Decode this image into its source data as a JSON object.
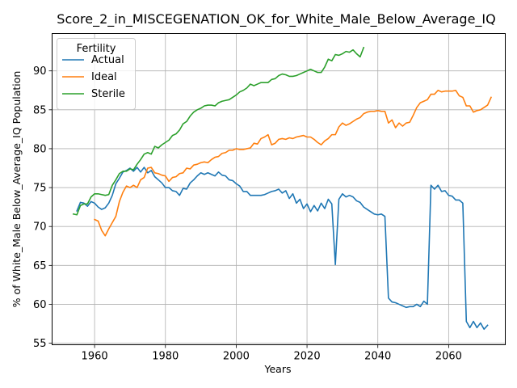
{
  "chart_data": {
    "type": "line",
    "title": "Score_2_in_MISCEGENATION_OK_for_White_Male_Below_Average_IQ",
    "xlabel": "Years",
    "ylabel": "% of White_Male Below_Average_IQ Population",
    "xlim": [
      1948,
      2076
    ],
    "ylim": [
      54.8,
      94.8
    ],
    "xticks": [
      1960,
      1980,
      2000,
      2020,
      2040,
      2060
    ],
    "yticks": [
      55,
      60,
      65,
      70,
      75,
      80,
      85,
      90
    ],
    "grid": true,
    "legend": {
      "title": "Fertility",
      "placement": "top-left"
    },
    "series": [
      {
        "name": "Actual",
        "color": "#1f77b4",
        "points": [
          [
            1955,
            72.0
          ],
          [
            1956,
            73.1
          ],
          [
            1957,
            73.0
          ],
          [
            1958,
            72.6
          ],
          [
            1959,
            73.2
          ],
          [
            1960,
            73.0
          ],
          [
            1961,
            72.5
          ],
          [
            1962,
            72.2
          ],
          [
            1963,
            72.4
          ],
          [
            1964,
            73.0
          ],
          [
            1965,
            74.0
          ],
          [
            1966,
            75.5
          ],
          [
            1967,
            76.2
          ],
          [
            1968,
            77.0
          ],
          [
            1969,
            77.2
          ],
          [
            1970,
            77.5
          ],
          [
            1971,
            77.1
          ],
          [
            1972,
            77.6
          ],
          [
            1973,
            77.0
          ],
          [
            1974,
            77.6
          ],
          [
            1975,
            76.9
          ],
          [
            1976,
            77.2
          ],
          [
            1977,
            76.4
          ],
          [
            1978,
            76.0
          ],
          [
            1979,
            75.6
          ],
          [
            1980,
            75.0
          ],
          [
            1981,
            75.0
          ],
          [
            1982,
            74.6
          ],
          [
            1983,
            74.5
          ],
          [
            1984,
            74.0
          ],
          [
            1985,
            74.9
          ],
          [
            1986,
            74.8
          ],
          [
            1987,
            75.6
          ],
          [
            1988,
            76.0
          ],
          [
            1989,
            76.5
          ],
          [
            1990,
            76.9
          ],
          [
            1991,
            76.7
          ],
          [
            1992,
            76.9
          ],
          [
            1993,
            76.7
          ],
          [
            1994,
            76.5
          ],
          [
            1995,
            77.0
          ],
          [
            1996,
            76.6
          ],
          [
            1997,
            76.5
          ],
          [
            1998,
            76.0
          ],
          [
            1999,
            75.9
          ],
          [
            2000,
            75.5
          ],
          [
            2001,
            75.2
          ],
          [
            2002,
            74.5
          ],
          [
            2003,
            74.5
          ],
          [
            2004,
            74.0
          ],
          [
            2005,
            74.0
          ],
          [
            2006,
            74.0
          ],
          [
            2007,
            74.0
          ],
          [
            2008,
            74.1
          ],
          [
            2009,
            74.3
          ],
          [
            2010,
            74.5
          ],
          [
            2011,
            74.6
          ],
          [
            2012,
            74.8
          ],
          [
            2013,
            74.3
          ],
          [
            2014,
            74.6
          ],
          [
            2015,
            73.6
          ],
          [
            2016,
            74.2
          ],
          [
            2017,
            73.0
          ],
          [
            2018,
            73.5
          ],
          [
            2019,
            72.3
          ],
          [
            2020,
            72.9
          ],
          [
            2021,
            71.9
          ],
          [
            2022,
            72.7
          ],
          [
            2023,
            72.0
          ],
          [
            2024,
            73.0
          ],
          [
            2025,
            72.3
          ],
          [
            2026,
            73.5
          ],
          [
            2027,
            72.9
          ],
          [
            2028,
            65.1
          ],
          [
            2029,
            73.5
          ],
          [
            2030,
            74.2
          ],
          [
            2031,
            73.8
          ],
          [
            2032,
            74.0
          ],
          [
            2033,
            73.8
          ],
          [
            2034,
            73.3
          ],
          [
            2035,
            73.1
          ],
          [
            2036,
            72.5
          ],
          [
            2037,
            72.2
          ],
          [
            2038,
            71.9
          ],
          [
            2039,
            71.6
          ],
          [
            2040,
            71.5
          ],
          [
            2041,
            71.6
          ],
          [
            2042,
            71.3
          ],
          [
            2043,
            60.8
          ],
          [
            2044,
            60.3
          ],
          [
            2045,
            60.2
          ],
          [
            2046,
            60.0
          ],
          [
            2047,
            59.8
          ],
          [
            2048,
            59.6
          ],
          [
            2049,
            59.7
          ],
          [
            2050,
            59.7
          ],
          [
            2051,
            60.0
          ],
          [
            2052,
            59.7
          ],
          [
            2053,
            60.4
          ],
          [
            2054,
            60.0
          ],
          [
            2055,
            75.3
          ],
          [
            2056,
            74.8
          ],
          [
            2057,
            75.3
          ],
          [
            2058,
            74.5
          ],
          [
            2059,
            74.6
          ],
          [
            2060,
            74.0
          ],
          [
            2061,
            73.9
          ],
          [
            2062,
            73.4
          ],
          [
            2063,
            73.4
          ],
          [
            2064,
            73.0
          ],
          [
            2065,
            57.8
          ],
          [
            2066,
            57.0
          ],
          [
            2067,
            57.8
          ],
          [
            2068,
            57.0
          ],
          [
            2069,
            57.6
          ],
          [
            2070,
            56.8
          ],
          [
            2071,
            57.3
          ]
        ]
      },
      {
        "name": "Ideal",
        "color": "#ff7f0e",
        "points": [
          [
            1960,
            70.9
          ],
          [
            1961,
            70.7
          ],
          [
            1962,
            69.5
          ],
          [
            1963,
            68.8
          ],
          [
            1964,
            69.7
          ],
          [
            1965,
            70.5
          ],
          [
            1966,
            71.3
          ],
          [
            1967,
            73.2
          ],
          [
            1968,
            74.4
          ],
          [
            1969,
            75.2
          ],
          [
            1970,
            75.0
          ],
          [
            1971,
            75.3
          ],
          [
            1972,
            75.0
          ],
          [
            1973,
            76.0
          ],
          [
            1974,
            76.3
          ],
          [
            1975,
            77.5
          ],
          [
            1976,
            77.6
          ],
          [
            1977,
            76.9
          ],
          [
            1978,
            76.8
          ],
          [
            1979,
            76.6
          ],
          [
            1980,
            76.5
          ],
          [
            1981,
            75.8
          ],
          [
            1982,
            76.3
          ],
          [
            1983,
            76.4
          ],
          [
            1984,
            76.8
          ],
          [
            1985,
            76.9
          ],
          [
            1986,
            77.5
          ],
          [
            1987,
            77.4
          ],
          [
            1988,
            77.9
          ],
          [
            1989,
            78.0
          ],
          [
            1990,
            78.2
          ],
          [
            1991,
            78.3
          ],
          [
            1992,
            78.2
          ],
          [
            1993,
            78.6
          ],
          [
            1994,
            78.9
          ],
          [
            1995,
            79.0
          ],
          [
            1996,
            79.4
          ],
          [
            1997,
            79.5
          ],
          [
            1998,
            79.8
          ],
          [
            1999,
            79.8
          ],
          [
            2000,
            80.0
          ],
          [
            2001,
            79.9
          ],
          [
            2002,
            79.9
          ],
          [
            2003,
            80.0
          ],
          [
            2004,
            80.1
          ],
          [
            2005,
            80.7
          ],
          [
            2006,
            80.6
          ],
          [
            2007,
            81.3
          ],
          [
            2008,
            81.5
          ],
          [
            2009,
            81.8
          ],
          [
            2010,
            80.5
          ],
          [
            2011,
            80.7
          ],
          [
            2012,
            81.2
          ],
          [
            2013,
            81.3
          ],
          [
            2014,
            81.2
          ],
          [
            2015,
            81.4
          ],
          [
            2016,
            81.3
          ],
          [
            2017,
            81.5
          ],
          [
            2018,
            81.6
          ],
          [
            2019,
            81.7
          ],
          [
            2020,
            81.5
          ],
          [
            2021,
            81.5
          ],
          [
            2022,
            81.2
          ],
          [
            2023,
            80.8
          ],
          [
            2024,
            80.5
          ],
          [
            2025,
            81.0
          ],
          [
            2026,
            81.3
          ],
          [
            2027,
            81.8
          ],
          [
            2028,
            81.8
          ],
          [
            2029,
            82.8
          ],
          [
            2030,
            83.3
          ],
          [
            2031,
            83.0
          ],
          [
            2032,
            83.2
          ],
          [
            2033,
            83.5
          ],
          [
            2034,
            83.8
          ],
          [
            2035,
            84.0
          ],
          [
            2036,
            84.5
          ],
          [
            2037,
            84.7
          ],
          [
            2038,
            84.8
          ],
          [
            2039,
            84.8
          ],
          [
            2040,
            84.9
          ],
          [
            2041,
            84.8
          ],
          [
            2042,
            84.8
          ],
          [
            2043,
            83.3
          ],
          [
            2044,
            83.7
          ],
          [
            2045,
            82.7
          ],
          [
            2046,
            83.3
          ],
          [
            2047,
            82.9
          ],
          [
            2048,
            83.3
          ],
          [
            2049,
            83.4
          ],
          [
            2050,
            84.3
          ],
          [
            2051,
            85.3
          ],
          [
            2052,
            85.9
          ],
          [
            2053,
            86.1
          ],
          [
            2054,
            86.3
          ],
          [
            2055,
            87.0
          ],
          [
            2056,
            87.0
          ],
          [
            2057,
            87.5
          ],
          [
            2058,
            87.3
          ],
          [
            2059,
            87.4
          ],
          [
            2060,
            87.4
          ],
          [
            2061,
            87.4
          ],
          [
            2062,
            87.5
          ],
          [
            2063,
            86.8
          ],
          [
            2064,
            86.6
          ],
          [
            2065,
            85.5
          ],
          [
            2066,
            85.5
          ],
          [
            2067,
            84.7
          ],
          [
            2068,
            84.9
          ],
          [
            2069,
            85.0
          ],
          [
            2070,
            85.3
          ],
          [
            2071,
            85.6
          ],
          [
            2072,
            86.6
          ]
        ]
      },
      {
        "name": "Sterile",
        "color": "#2ca02c",
        "points": [
          [
            1954,
            71.6
          ],
          [
            1955,
            71.5
          ],
          [
            1956,
            72.7
          ],
          [
            1957,
            72.9
          ],
          [
            1958,
            72.9
          ],
          [
            1959,
            73.8
          ],
          [
            1960,
            74.2
          ],
          [
            1961,
            74.2
          ],
          [
            1962,
            74.1
          ],
          [
            1963,
            74.0
          ],
          [
            1964,
            74.1
          ],
          [
            1965,
            75.3
          ],
          [
            1966,
            76.0
          ],
          [
            1967,
            76.8
          ],
          [
            1968,
            77.1
          ],
          [
            1969,
            77.1
          ],
          [
            1970,
            77.4
          ],
          [
            1971,
            77.3
          ],
          [
            1972,
            78.0
          ],
          [
            1973,
            78.6
          ],
          [
            1974,
            79.3
          ],
          [
            1975,
            79.5
          ],
          [
            1976,
            79.3
          ],
          [
            1977,
            80.3
          ],
          [
            1978,
            80.1
          ],
          [
            1979,
            80.5
          ],
          [
            1980,
            80.8
          ],
          [
            1981,
            81.1
          ],
          [
            1982,
            81.7
          ],
          [
            1983,
            81.9
          ],
          [
            1984,
            82.4
          ],
          [
            1985,
            83.2
          ],
          [
            1986,
            83.5
          ],
          [
            1987,
            84.2
          ],
          [
            1988,
            84.7
          ],
          [
            1989,
            85.0
          ],
          [
            1990,
            85.2
          ],
          [
            1991,
            85.5
          ],
          [
            1992,
            85.6
          ],
          [
            1993,
            85.6
          ],
          [
            1994,
            85.5
          ],
          [
            1995,
            85.9
          ],
          [
            1996,
            86.1
          ],
          [
            1997,
            86.2
          ],
          [
            1998,
            86.3
          ],
          [
            1999,
            86.6
          ],
          [
            2000,
            86.9
          ],
          [
            2001,
            87.3
          ],
          [
            2002,
            87.5
          ],
          [
            2003,
            87.8
          ],
          [
            2004,
            88.3
          ],
          [
            2005,
            88.1
          ],
          [
            2006,
            88.3
          ],
          [
            2007,
            88.5
          ],
          [
            2008,
            88.5
          ],
          [
            2009,
            88.5
          ],
          [
            2010,
            88.9
          ],
          [
            2011,
            89.0
          ],
          [
            2012,
            89.4
          ],
          [
            2013,
            89.6
          ],
          [
            2014,
            89.5
          ],
          [
            2015,
            89.3
          ],
          [
            2016,
            89.3
          ],
          [
            2017,
            89.4
          ],
          [
            2018,
            89.6
          ],
          [
            2019,
            89.8
          ],
          [
            2020,
            90.0
          ],
          [
            2021,
            90.2
          ],
          [
            2022,
            90.0
          ],
          [
            2023,
            89.8
          ],
          [
            2024,
            89.8
          ],
          [
            2025,
            90.5
          ],
          [
            2026,
            91.5
          ],
          [
            2027,
            91.3
          ],
          [
            2028,
            92.1
          ],
          [
            2029,
            92.0
          ],
          [
            2030,
            92.2
          ],
          [
            2031,
            92.5
          ],
          [
            2032,
            92.4
          ],
          [
            2033,
            92.7
          ],
          [
            2034,
            92.2
          ],
          [
            2035,
            91.8
          ],
          [
            2036,
            93.0
          ]
        ]
      }
    ]
  }
}
